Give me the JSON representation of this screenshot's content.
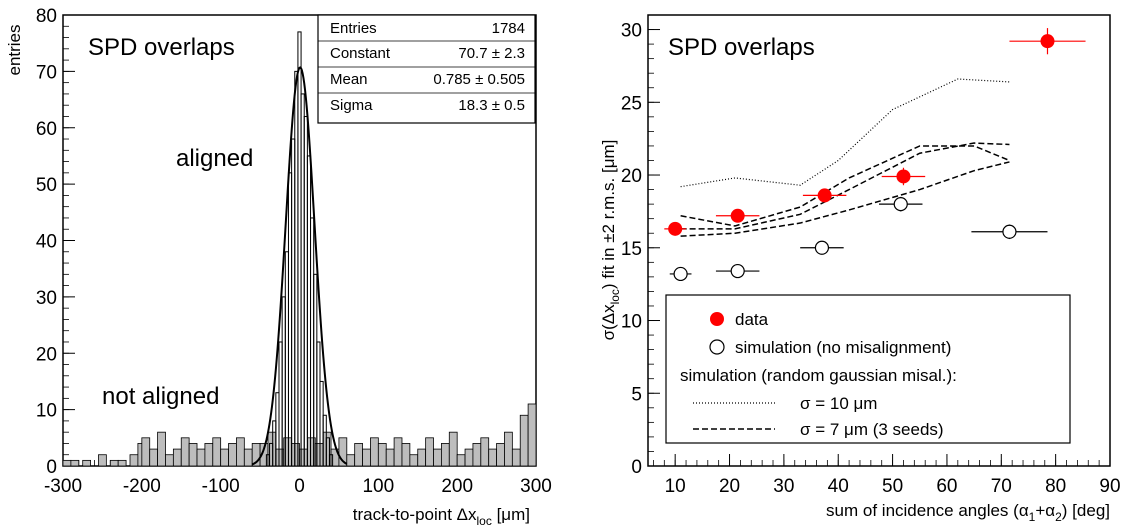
{
  "chart_data": [
    {
      "type": "histogram",
      "panel_label": "SPD overlaps",
      "xlabel": "track-to-point Δx",
      "xlabel_sub": "loc",
      "xlabel_unit": " [μm]",
      "ylabel": "entries",
      "xlim": [
        -300,
        300
      ],
      "ylim": [
        0,
        80
      ],
      "x_ticks": [
        -300,
        -200,
        -100,
        0,
        100,
        200,
        300
      ],
      "y_ticks": [
        0,
        10,
        20,
        30,
        40,
        50,
        60,
        70,
        80
      ],
      "x_tick_labels": [
        "-300",
        "-200",
        "-100",
        "0",
        "100",
        "200",
        "300"
      ],
      "y_tick_labels": [
        "0",
        "10",
        "20",
        "30",
        "40",
        "50",
        "60",
        "70",
        "80"
      ],
      "annotations": {
        "aligned": "aligned",
        "not_aligned": "not aligned"
      },
      "stats_box": [
        {
          "label": "Entries",
          "value": "1784"
        },
        {
          "label": "Constant",
          "value": "70.7 ± 2.3"
        },
        {
          "label": "Mean",
          "value": "0.785 ± 0.505"
        },
        {
          "label": "Sigma",
          "value": "18.3 ± 0.5"
        }
      ],
      "fit": {
        "constant": 70.7,
        "mean": 0.785,
        "sigma": 18.3
      },
      "aligned_peak_values": [
        [
          -40,
          2
        ],
        [
          -36,
          4
        ],
        [
          -32,
          8
        ],
        [
          -28,
          13
        ],
        [
          -24,
          22
        ],
        [
          -20,
          30
        ],
        [
          -16,
          38
        ],
        [
          -12,
          52
        ],
        [
          -8,
          58
        ],
        [
          -4,
          70
        ],
        [
          0,
          77
        ],
        [
          4,
          66
        ],
        [
          8,
          62
        ],
        [
          12,
          55
        ],
        [
          16,
          44
        ],
        [
          20,
          34
        ],
        [
          24,
          22
        ],
        [
          28,
          15
        ],
        [
          32,
          9
        ],
        [
          36,
          5
        ],
        [
          40,
          2
        ]
      ],
      "not_aligned_values_approx": [
        [
          -295,
          1
        ],
        [
          -285,
          1
        ],
        [
          -270,
          1
        ],
        [
          -250,
          2
        ],
        [
          -235,
          1
        ],
        [
          -225,
          1
        ],
        [
          -210,
          2
        ],
        [
          -200,
          4
        ],
        [
          -195,
          5
        ],
        [
          -185,
          3
        ],
        [
          -175,
          6
        ],
        [
          -165,
          2
        ],
        [
          -155,
          3
        ],
        [
          -145,
          5
        ],
        [
          -135,
          4
        ],
        [
          -125,
          3
        ],
        [
          -115,
          4
        ],
        [
          -105,
          5
        ],
        [
          -95,
          3
        ],
        [
          -85,
          4
        ],
        [
          -75,
          5
        ],
        [
          -65,
          3
        ],
        [
          -55,
          4
        ],
        [
          -45,
          4
        ],
        [
          -35,
          6
        ],
        [
          -25,
          3
        ],
        [
          -15,
          5
        ],
        [
          -5,
          4
        ],
        [
          5,
          3
        ],
        [
          15,
          5
        ],
        [
          25,
          4
        ],
        [
          35,
          6
        ],
        [
          45,
          3
        ],
        [
          55,
          5
        ],
        [
          65,
          2
        ],
        [
          75,
          4
        ],
        [
          85,
          3
        ],
        [
          95,
          5
        ],
        [
          105,
          4
        ],
        [
          115,
          3
        ],
        [
          125,
          5
        ],
        [
          135,
          4
        ],
        [
          145,
          2
        ],
        [
          155,
          3
        ],
        [
          165,
          5
        ],
        [
          175,
          3
        ],
        [
          185,
          4
        ],
        [
          195,
          6
        ],
        [
          205,
          2
        ],
        [
          215,
          3
        ],
        [
          225,
          4
        ],
        [
          235,
          5
        ],
        [
          245,
          3
        ],
        [
          255,
          4
        ],
        [
          265,
          6
        ],
        [
          275,
          3
        ],
        [
          285,
          9
        ],
        [
          295,
          11
        ]
      ]
    },
    {
      "type": "scatter",
      "panel_label": "SPD overlaps",
      "xlabel": "sum of incidence angles (α",
      "xlabel_sub1": "1",
      "xlabel_mid": "+α",
      "xlabel_sub2": "2",
      "xlabel_unit": ")  [deg]",
      "ylabel": "σ(Δx",
      "ylabel_sub": "loc",
      "ylabel_rest": ") fit in ±2 r.m.s. [μm]",
      "xlim": [
        5,
        90
      ],
      "ylim": [
        0,
        31
      ],
      "x_ticks": [
        10,
        20,
        30,
        40,
        50,
        60,
        70,
        80,
        90
      ],
      "y_ticks": [
        0,
        5,
        10,
        15,
        20,
        25,
        30
      ],
      "x_tick_labels": [
        "10",
        "20",
        "30",
        "40",
        "50",
        "60",
        "70",
        "80",
        "90"
      ],
      "y_tick_labels": [
        "0",
        "5",
        "10",
        "15",
        "20",
        "25",
        "30"
      ],
      "series": [
        {
          "name": "data",
          "style": "filled-circle",
          "color": "#ff0000",
          "points": [
            {
              "x": 10,
              "y": 16.3,
              "xerr": 2,
              "yerr": 0.3
            },
            {
              "x": 21.5,
              "y": 17.2,
              "xerr": 4,
              "yerr": 0.3
            },
            {
              "x": 37.5,
              "y": 18.6,
              "xerr": 4,
              "yerr": 0.4
            },
            {
              "x": 52,
              "y": 19.9,
              "xerr": 4,
              "yerr": 0.6
            },
            {
              "x": 78.5,
              "y": 29.2,
              "xerr": 7,
              "yerr": 0.9
            }
          ]
        },
        {
          "name": "simulation (no misalignment)",
          "style": "open-circle",
          "color": "#000000",
          "points": [
            {
              "x": 11,
              "y": 13.2,
              "xerr": 2,
              "yerr": 0.2
            },
            {
              "x": 21.5,
              "y": 13.4,
              "xerr": 4,
              "yerr": 0.2
            },
            {
              "x": 37,
              "y": 15.0,
              "xerr": 4,
              "yerr": 0.3
            },
            {
              "x": 51.5,
              "y": 18.0,
              "xerr": 4,
              "yerr": 0.5
            },
            {
              "x": 71.5,
              "y": 16.1,
              "xerr": 7,
              "yerr": 0.5
            }
          ]
        },
        {
          "name": "σ = 10 μm",
          "style": "dotted",
          "points": [
            {
              "x": 11,
              "y": 19.2
            },
            {
              "x": 21,
              "y": 19.8
            },
            {
              "x": 33,
              "y": 19.3
            },
            {
              "x": 40,
              "y": 21.0
            },
            {
              "x": 50,
              "y": 24.5
            },
            {
              "x": 62,
              "y": 26.6
            },
            {
              "x": 71.5,
              "y": 26.4
            }
          ]
        },
        {
          "name": "σ = 7 μm (3 seeds)",
          "style": "dashed",
          "curves": [
            [
              {
                "x": 11,
                "y": 17.2
              },
              {
                "x": 21,
                "y": 16.5
              },
              {
                "x": 33,
                "y": 17.8
              },
              {
                "x": 42,
                "y": 19.8
              },
              {
                "x": 55,
                "y": 22.0
              },
              {
                "x": 65,
                "y": 22.0
              },
              {
                "x": 71.5,
                "y": 21.0
              }
            ],
            [
              {
                "x": 11,
                "y": 16.3
              },
              {
                "x": 21,
                "y": 16.3
              },
              {
                "x": 33,
                "y": 17.3
              },
              {
                "x": 42,
                "y": 19.0
              },
              {
                "x": 55,
                "y": 21.5
              },
              {
                "x": 65,
                "y": 22.2
              },
              {
                "x": 71.5,
                "y": 22.1
              }
            ],
            [
              {
                "x": 11,
                "y": 15.8
              },
              {
                "x": 21,
                "y": 16.0
              },
              {
                "x": 33,
                "y": 16.7
              },
              {
                "x": 42,
                "y": 17.6
              },
              {
                "x": 55,
                "y": 19.0
              },
              {
                "x": 65,
                "y": 20.3
              },
              {
                "x": 71.5,
                "y": 20.9
              }
            ]
          ]
        }
      ],
      "legend": {
        "entries": [
          "data",
          "simulation (no misalignment)",
          "simulation (random gaussian misal.):",
          "σ = 10 μm",
          "σ = 7 μm (3 seeds)"
        ]
      }
    }
  ]
}
